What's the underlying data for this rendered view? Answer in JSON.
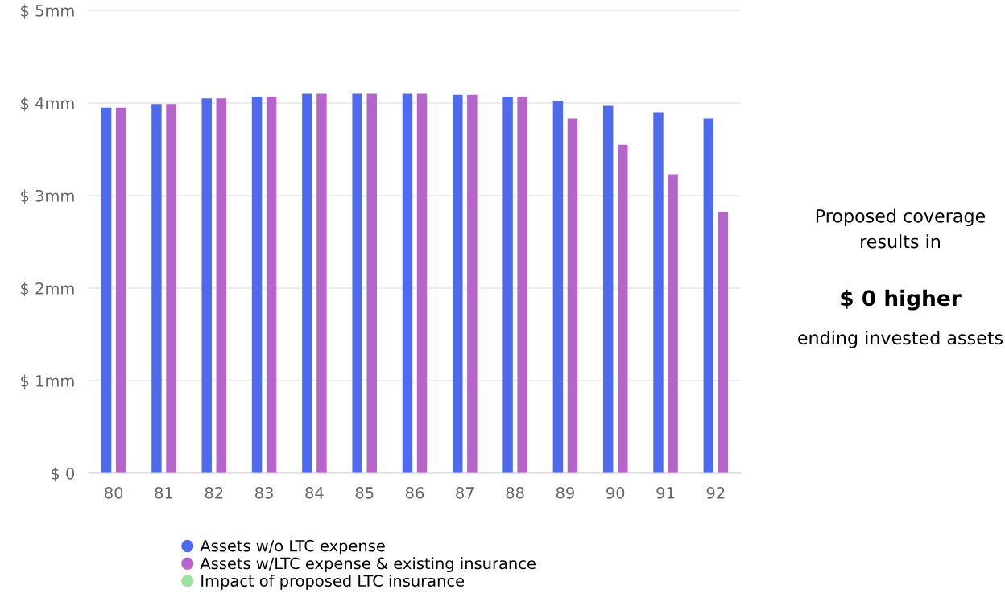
{
  "chart_data": {
    "type": "bar",
    "categories": [
      "80",
      "81",
      "82",
      "83",
      "84",
      "85",
      "86",
      "87",
      "88",
      "89",
      "90",
      "91",
      "92"
    ],
    "series": [
      {
        "name": "Assets w/o LTC expense",
        "color": "#4f6bed",
        "values": [
          3.95,
          3.99,
          4.05,
          4.07,
          4.1,
          4.1,
          4.1,
          4.09,
          4.07,
          4.02,
          3.97,
          3.9,
          3.83
        ]
      },
      {
        "name": "Assets w/LTC expense & existing insurance",
        "color": "#b565c9",
        "values": [
          3.95,
          3.99,
          4.05,
          4.07,
          4.1,
          4.1,
          4.1,
          4.09,
          4.07,
          3.83,
          3.55,
          3.23,
          2.82
        ]
      },
      {
        "name": "Impact of proposed LTC insurance",
        "color": "#9be39b",
        "values": [
          null,
          null,
          null,
          null,
          null,
          null,
          null,
          null,
          null,
          null,
          null,
          null,
          null
        ]
      }
    ],
    "ylim": [
      0,
      5
    ],
    "yticks": [
      {
        "value": 0,
        "label": "$ 0"
      },
      {
        "value": 1,
        "label": "$ 1mm"
      },
      {
        "value": 2,
        "label": "$ 2mm"
      },
      {
        "value": 3,
        "label": "$ 3mm"
      },
      {
        "value": 4,
        "label": "$ 4mm"
      },
      {
        "value": 5,
        "label": "$ 5mm"
      }
    ],
    "grid": "y",
    "legend": "bottom",
    "annotations": [
      "Proposed coverage\nresults in",
      "$ 0 higher",
      "ending invested assets"
    ]
  }
}
